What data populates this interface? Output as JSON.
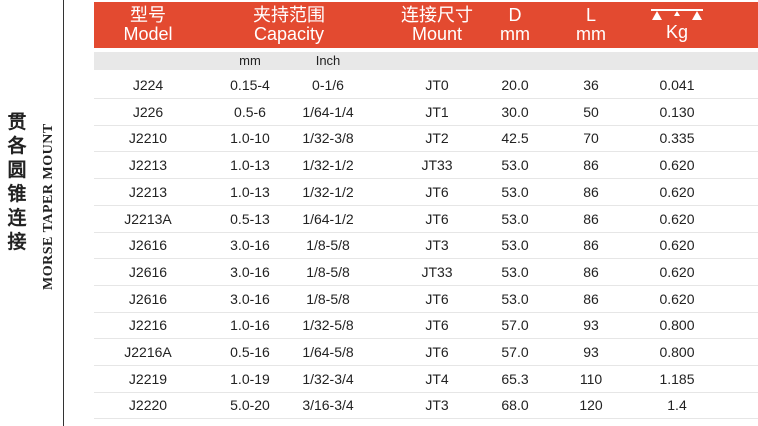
{
  "side": {
    "chinese": "贯各圆锥连接",
    "english": "MORSE TAPER MOUNT"
  },
  "header": {
    "model_cn": "型号",
    "model_en": "Model",
    "capacity_cn": "夹持范围",
    "capacity_en": "Capacity",
    "mount_cn": "连接尺寸",
    "mount_en": "Mount",
    "d": "D",
    "d_unit": "mm",
    "l": "L",
    "l_unit": "mm",
    "kg": "Kg",
    "weight_icon": "scale-icon"
  },
  "subheader": {
    "mm": "mm",
    "inch": "Inch"
  },
  "colors": {
    "header_bg": "#e34a30",
    "subheader_bg": "#e8e8e8"
  },
  "rows": [
    [
      "J224",
      "0.15-4",
      "0-1/6",
      "JT0",
      "20.0",
      "36",
      "0.041"
    ],
    [
      "J226",
      "0.5-6",
      "1/64-1/4",
      "JT1",
      "30.0",
      "50",
      "0.130"
    ],
    [
      "J2210",
      "1.0-10",
      "1/32-3/8",
      "JT2",
      "42.5",
      "70",
      "0.335"
    ],
    [
      "J2213",
      "1.0-13",
      "1/32-1/2",
      "JT33",
      "53.0",
      "86",
      "0.620"
    ],
    [
      "J2213",
      "1.0-13",
      "1/32-1/2",
      "JT6",
      "53.0",
      "86",
      "0.620"
    ],
    [
      "J2213A",
      "0.5-13",
      "1/64-1/2",
      "JT6",
      "53.0",
      "86",
      "0.620"
    ],
    [
      "J2616",
      "3.0-16",
      "1/8-5/8",
      "JT3",
      "53.0",
      "86",
      "0.620"
    ],
    [
      "J2616",
      "3.0-16",
      "1/8-5/8",
      "JT33",
      "53.0",
      "86",
      "0.620"
    ],
    [
      "J2616",
      "3.0-16",
      "1/8-5/8",
      "JT6",
      "53.0",
      "86",
      "0.620"
    ],
    [
      "J2216",
      "1.0-16",
      "1/32-5/8",
      "JT6",
      "57.0",
      "93",
      "0.800"
    ],
    [
      "J2216A",
      "0.5-16",
      "1/64-5/8",
      "JT6",
      "57.0",
      "93",
      "0.800"
    ],
    [
      "J2219",
      "1.0-19",
      "1/32-3/4",
      "JT4",
      "65.3",
      "110",
      "1.185"
    ],
    [
      "J2220",
      "5.0-20",
      "3/16-3/4",
      "JT3",
      "68.0",
      "120",
      "1.4"
    ]
  ]
}
